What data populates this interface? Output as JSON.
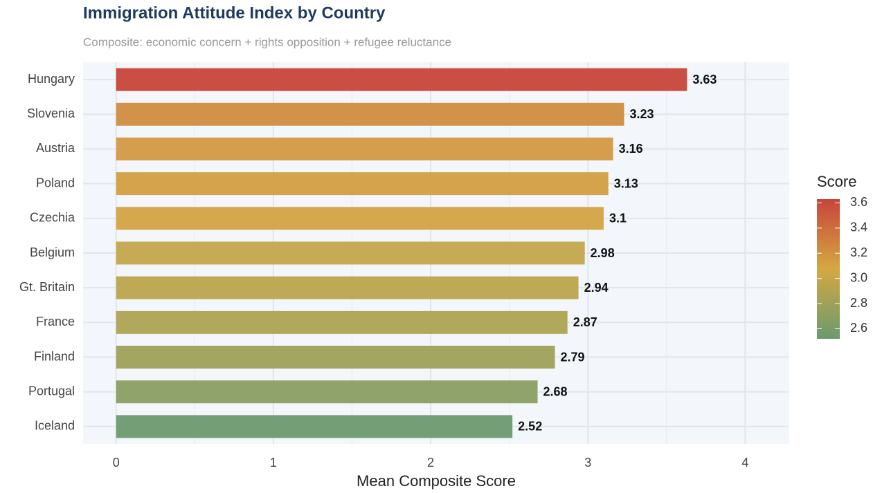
{
  "chart_data": {
    "type": "bar",
    "orientation": "horizontal",
    "title": "Immigration Attitude Index by Country",
    "subtitle": "Composite: economic concern + rights opposition + refugee reluctance",
    "xlabel": "Mean Composite Score",
    "categories": [
      "Hungary",
      "Slovenia",
      "Austria",
      "Poland",
      "Czechia",
      "Belgium",
      "Gt. Britain",
      "France",
      "Finland",
      "Portugal",
      "Iceland"
    ],
    "values": [
      3.63,
      3.23,
      3.16,
      3.13,
      3.1,
      2.98,
      2.94,
      2.87,
      2.79,
      2.68,
      2.52
    ],
    "xlim": [
      -0.21,
      4.28
    ],
    "xticks": [
      0,
      1,
      2,
      3,
      4
    ],
    "grid": true,
    "color_scale": {
      "name": "Score",
      "colors": [
        "#6a9a6e",
        "#d4a843",
        "#c8443a"
      ],
      "ticks": [
        2.6,
        2.8,
        {
          "value": 3,
          "label": "3.0"
        },
        3.2,
        3.4,
        3.6
      ]
    }
  }
}
